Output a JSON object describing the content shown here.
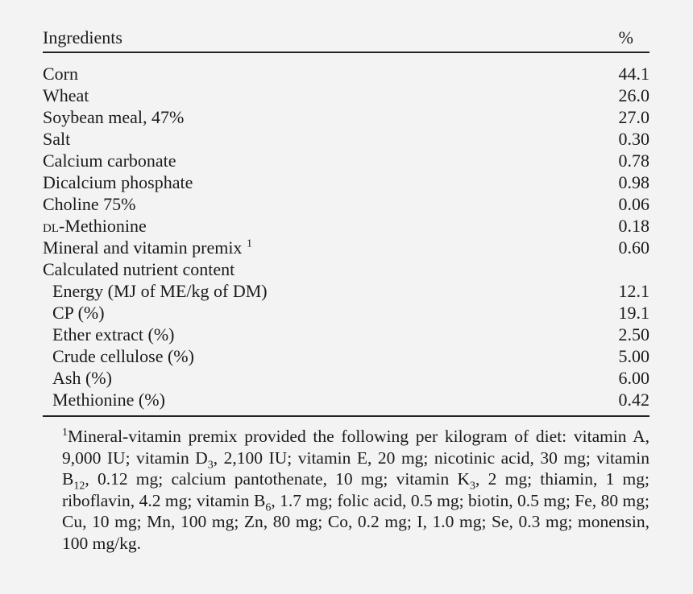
{
  "table": {
    "header": {
      "ingredients": "Ingredients",
      "percent": "%"
    },
    "rows": [
      {
        "label": "Corn",
        "value": "44.1"
      },
      {
        "label": "Wheat",
        "value": "26.0"
      },
      {
        "label": "Soybean meal, 47%",
        "value": "27.0"
      },
      {
        "label": "Salt",
        "value": "0.30"
      },
      {
        "label": "Calcium carbonate",
        "value": "0.78"
      },
      {
        "label": "Dicalcium phosphate",
        "value": "0.98"
      },
      {
        "label": "Choline 75%",
        "value": "0.06"
      },
      {
        "label_prefix": "dl",
        "label_rest": "-Methionine",
        "value": "0.18"
      },
      {
        "label": "Mineral and vitamin premix",
        "sup": "1",
        "value": "0.60"
      },
      {
        "label": "Calculated nutrient content",
        "value": ""
      },
      {
        "label": "Energy (MJ of ME/kg of DM)",
        "value": "12.1"
      },
      {
        "label": "CP (%)",
        "value": "19.1"
      },
      {
        "label": "Ether extract (%)",
        "value": "2.50"
      },
      {
        "label": "Crude cellulose (%)",
        "value": "5.00"
      },
      {
        "label": "Ash (%)",
        "value": "6.00"
      },
      {
        "label": "Methionine (%)",
        "value": "0.42"
      }
    ]
  },
  "footnote": {
    "sup": "1",
    "p1": "Mineral-vitamin premix provided the following per kilogram of diet: vitamin A, 9,000 IU; vitamin D",
    "sub1": "3",
    "p2": ", 2,100 IU; vitamin E, 20 mg; nicotinic acid, 30 mg; vitamin B",
    "sub2": "12",
    "p3": ", 0.12 mg; calcium pantothenate, 10 mg; vitamin K",
    "sub3": "3",
    "p4": ", 2 mg; thiamin, 1 mg; riboflavin, 4.2 mg; vitamin B",
    "sub4": "6",
    "p5": ", 1.7 mg; folic acid, 0.5 mg; biotin, 0.5 mg; Fe, 80 mg; Cu, 10 mg; Mn, 100 mg; Zn, 80 mg; Co, 0.2 mg; I, 1.0 mg; Se, 0.3 mg; monensin, 100 mg/kg."
  }
}
